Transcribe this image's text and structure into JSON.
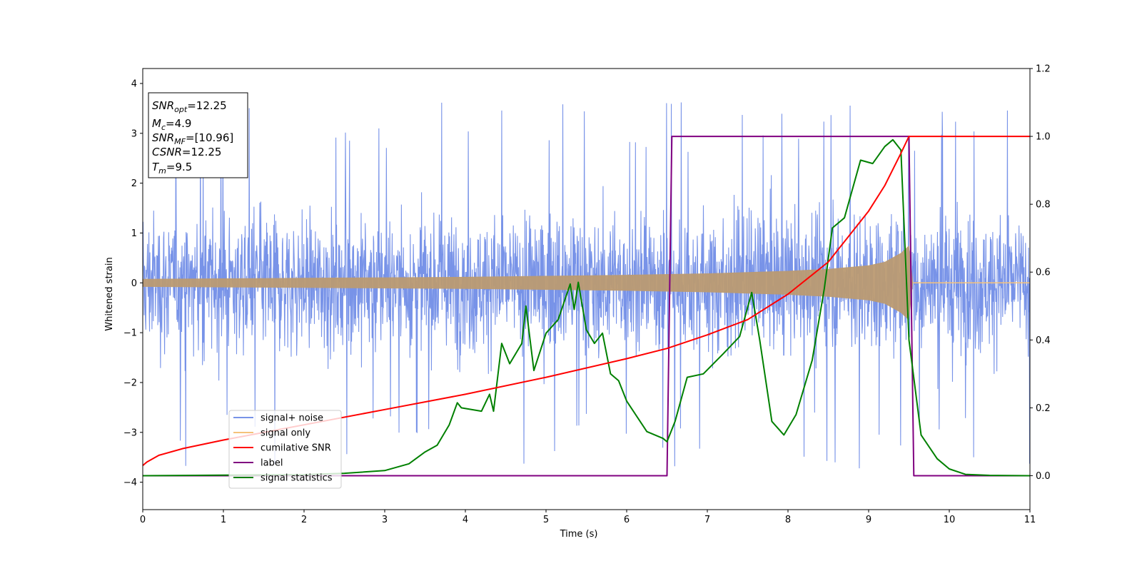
{
  "chart_data": {
    "type": "line",
    "xlabel": "Time (s)",
    "ylabel": "Whitened strain",
    "xlim": [
      0,
      11
    ],
    "ylim_left": [
      -4.55,
      4.3
    ],
    "ylim_right": [
      -0.1,
      1.2
    ],
    "xticks": [
      "0",
      "1",
      "2",
      "3",
      "4",
      "5",
      "6",
      "7",
      "8",
      "9",
      "10",
      "11"
    ],
    "yticks_left": [
      "−4",
      "−3",
      "−2",
      "−1",
      "0",
      "1",
      "2",
      "3",
      "4"
    ],
    "yticks_right": [
      "0.0",
      "0.2",
      "0.4",
      "0.6",
      "0.8",
      "1.0",
      "1.2"
    ],
    "legend_location": "lower-left",
    "annotation": {
      "snr_opt": "12.25",
      "mc": "4.9",
      "snr_mf": "[10.96]",
      "csnr": "12.25",
      "tm": "9.5"
    },
    "series": [
      {
        "name": "signal+ noise",
        "color": "#7893e8",
        "axis": "left",
        "kind": "noisy-strain",
        "typical_range": [
          -2.5,
          2.6
        ],
        "extremes": [
          -4.2,
          3.9
        ]
      },
      {
        "name": "signal only",
        "color": "#f5c27a",
        "axis": "left",
        "kind": "chirp-envelope",
        "envelope": {
          "x": [
            0,
            1,
            2,
            3,
            4,
            5,
            6,
            7,
            8,
            8.5,
            9,
            9.2,
            9.4,
            9.5,
            9.55
          ],
          "amp": [
            0.08,
            0.09,
            0.1,
            0.11,
            0.12,
            0.14,
            0.16,
            0.19,
            0.24,
            0.28,
            0.35,
            0.42,
            0.6,
            0.75,
            0
          ]
        }
      },
      {
        "name": "cumilative SNR",
        "color": "#ff0000",
        "axis": "right",
        "x": [
          0,
          0.05,
          0.2,
          0.5,
          1,
          2,
          3,
          4,
          5,
          6,
          6.5,
          7,
          7.5,
          8,
          8.5,
          9,
          9.2,
          9.4,
          9.5,
          11
        ],
        "y": [
          0.03,
          0.04,
          0.06,
          0.08,
          0.105,
          0.15,
          0.195,
          0.24,
          0.29,
          0.345,
          0.375,
          0.415,
          0.46,
          0.535,
          0.63,
          0.78,
          0.855,
          0.95,
          1.0,
          1.0
        ]
      },
      {
        "name": "label",
        "color": "#800080",
        "axis": "right",
        "x": [
          0,
          6.5,
          6.56,
          9.5,
          9.56,
          11
        ],
        "y": [
          0,
          0,
          1,
          1,
          0,
          0
        ]
      },
      {
        "name": "signal statistics",
        "color": "#008000",
        "axis": "right",
        "x": [
          0,
          2,
          2.5,
          3,
          3.3,
          3.5,
          3.65,
          3.8,
          3.9,
          3.95,
          4.2,
          4.3,
          4.35,
          4.45,
          4.55,
          4.7,
          4.75,
          4.85,
          5,
          5.15,
          5.3,
          5.35,
          5.4,
          5.5,
          5.6,
          5.7,
          5.8,
          5.9,
          6,
          6.25,
          6.45,
          6.5,
          6.6,
          6.75,
          6.95,
          7.2,
          7.4,
          7.55,
          7.65,
          7.8,
          7.95,
          8.1,
          8.3,
          8.45,
          8.55,
          8.7,
          8.9,
          9.05,
          9.2,
          9.3,
          9.4,
          9.5,
          9.65,
          9.85,
          10,
          10.2,
          10.5,
          11
        ],
        "y": [
          0,
          0.003,
          0.007,
          0.015,
          0.035,
          0.07,
          0.09,
          0.15,
          0.215,
          0.2,
          0.19,
          0.24,
          0.19,
          0.39,
          0.33,
          0.39,
          0.5,
          0.31,
          0.42,
          0.46,
          0.565,
          0.49,
          0.57,
          0.43,
          0.39,
          0.42,
          0.3,
          0.28,
          0.22,
          0.13,
          0.11,
          0.1,
          0.16,
          0.29,
          0.3,
          0.36,
          0.41,
          0.54,
          0.4,
          0.16,
          0.12,
          0.18,
          0.34,
          0.55,
          0.73,
          0.76,
          0.93,
          0.92,
          0.97,
          0.99,
          0.96,
          0.4,
          0.12,
          0.05,
          0.02,
          0.004,
          0.001,
          0
        ]
      }
    ]
  }
}
